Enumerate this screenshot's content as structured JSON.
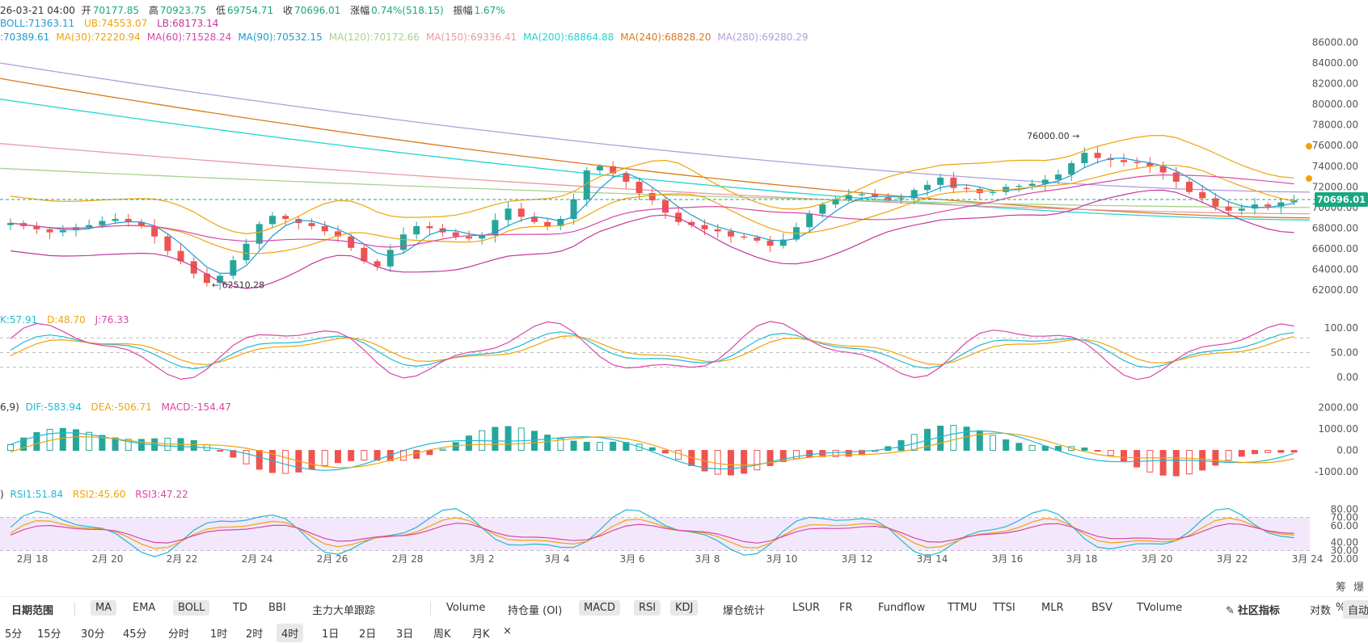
{
  "ohlc": {
    "time": "26-03-21 04:00",
    "open_label": "开",
    "open": "70177.85",
    "high_label": "高",
    "high": "70923.75",
    "low_label": "低",
    "low": "69754.71",
    "close_label": "收",
    "close": "70696.01",
    "change_label": "涨幅",
    "change": "0.74%(518.15)",
    "amp_label": "振幅",
    "amp": "1.67%"
  },
  "indicators": {
    "boll": {
      "mid": "BOLL:71363.11",
      "ub": "UB:74553.07",
      "lb": "LB:68173.14"
    },
    "ma": [
      {
        "label": ":70389.61",
        "color": "#1f9bd1"
      },
      {
        "label": "MA(30):72220.94",
        "color": "#f0a30a"
      },
      {
        "label": "MA(60):71528.24",
        "color": "#d946a8"
      },
      {
        "label": "MA(90):70532.15",
        "color": "#1f9bd1"
      },
      {
        "label": "MA(120):70172.66",
        "color": "#a8d08d"
      },
      {
        "label": "MA(150):69336.41",
        "color": "#e89aa2"
      },
      {
        "label": "MA(200):68864.88",
        "color": "#22d3d3"
      },
      {
        "label": "MA(240):68828.20",
        "color": "#d97a1a"
      },
      {
        "label": "MA(280):69280.29",
        "color": "#b39ddb"
      }
    ],
    "kdj": {
      "k": "K:57.91",
      "d": "D:48.70",
      "j": "J:76.33"
    },
    "macd": {
      "params": "6,9)",
      "dif": "DIF:-583.94",
      "dea": "DEA:-506.71",
      "macd": "MACD:-154.47"
    },
    "rsi": {
      "params": ")",
      "rsi1": "RSI1:51.84",
      "rsi2": "RSI2:45.60",
      "rsi3": "RSI3:47.22"
    }
  },
  "colors": {
    "up": "#26a69a",
    "down": "#ef5350",
    "ma5": "#1f9bd1",
    "ma30": "#f0a30a",
    "ma60": "#d946a8",
    "ma90": "#1f9bd1",
    "ma120": "#a8d08d",
    "ma150": "#e89aa2",
    "ma200": "#22d3d3",
    "ma240": "#d97a1a",
    "ma280": "#b39ddb",
    "boll_ub": "#f0a30a",
    "boll_lb": "#c2369e",
    "k": "#1fbad1",
    "d": "#f0a30a",
    "j": "#d946a8",
    "rsi_band": "#f3e8fb"
  },
  "chart_data": {
    "type": "candlestick",
    "price_axis": {
      "ticks": [
        "86000.00",
        "84000.00",
        "82000.00",
        "80000.00",
        "78000.00",
        "76000.00",
        "74000.00",
        "72000.00",
        "70000.00",
        "68000.00",
        "66000.00",
        "64000.00",
        "62000.00"
      ],
      "ylim": [
        61000,
        86500
      ]
    },
    "last_price": "70696.01",
    "x_ticks": [
      "2月 18",
      "2月 20",
      "2月 22",
      "2月 24",
      "2月 26",
      "2月 28",
      "3月 2",
      "3月 4",
      "3月 6",
      "3月 8",
      "3月 10",
      "3月 12",
      "3月 14",
      "3月 16",
      "3月 18",
      "3月 20",
      "3月 22",
      "3月 24"
    ],
    "annotations": [
      {
        "text": "76000.00 →",
        "value": 76000
      },
      {
        "text": "← 62510.28",
        "value": 62510.28
      }
    ],
    "close_path": [
      68500,
      68200,
      67900,
      67600,
      67800,
      68100,
      68300,
      68700,
      68900,
      68600,
      68200,
      67200,
      65800,
      64800,
      63600,
      62700,
      63400,
      64900,
      66500,
      68400,
      69200,
      68900,
      68500,
      68200,
      67700,
      67200,
      66100,
      64800,
      64300,
      65900,
      67400,
      68200,
      68000,
      67600,
      67200,
      67000,
      67300,
      68800,
      69900,
      69100,
      68600,
      68200,
      68900,
      70800,
      73600,
      74000,
      73300,
      72500,
      71400,
      70700,
      69500,
      68600,
      68300,
      67900,
      67700,
      67200,
      67100,
      66800,
      66300,
      66900,
      68100,
      69400,
      70300,
      70800,
      71200,
      71300,
      71000,
      70800,
      70900,
      71700,
      72200,
      72900,
      71900,
      71800,
      71400,
      71500,
      72000,
      72100,
      72300,
      72700,
      73200,
      74300,
      75300,
      74800,
      74600,
      74400,
      74300,
      74000,
      73400,
      72500,
      71500,
      70900,
      70100,
      69700,
      69900,
      70300,
      70100,
      70500,
      70700
    ],
    "kdj_axis": {
      "ticks": [
        "100.00",
        "50.00",
        "0.00"
      ]
    },
    "macd_axis": {
      "ticks": [
        "2000.00",
        "1000.00",
        "0.00",
        "-1000.00"
      ]
    },
    "rsi_axis": {
      "ticks": [
        "80.00",
        "70.00",
        "60.00",
        "40.00",
        "30.00",
        "20.00"
      ]
    }
  },
  "toolbar": {
    "date_range": "日期范围",
    "groups": [
      "MA",
      "EMA",
      "BOLL",
      "TD",
      "BBI",
      "主力大单跟踪"
    ],
    "groups_on": [
      true,
      false,
      true,
      false,
      false,
      false
    ],
    "sub": [
      "Volume",
      "持仓量 (OI)",
      "MACD",
      "RSI",
      "KDJ",
      "爆仓统计",
      "LSUR",
      "FR",
      "Fundflow",
      "TTMU",
      "TTSI",
      "MLR",
      "BSV",
      "TVolume"
    ],
    "sub_on": [
      false,
      false,
      true,
      true,
      true,
      false,
      false,
      false,
      false,
      false,
      false,
      false,
      false,
      false
    ],
    "community": "社区指标",
    "log_label": "对数",
    "pct_label": "%",
    "auto_label": "自动",
    "chip_a": "筹",
    "chip_b": "爆"
  },
  "timebar": {
    "items": [
      "5分",
      "15分",
      "30分",
      "45分",
      "分时",
      "1时",
      "2时",
      "4时",
      "1日",
      "2日",
      "3日",
      "周K",
      "月K"
    ],
    "active": "4时",
    "close_mark": "×"
  }
}
